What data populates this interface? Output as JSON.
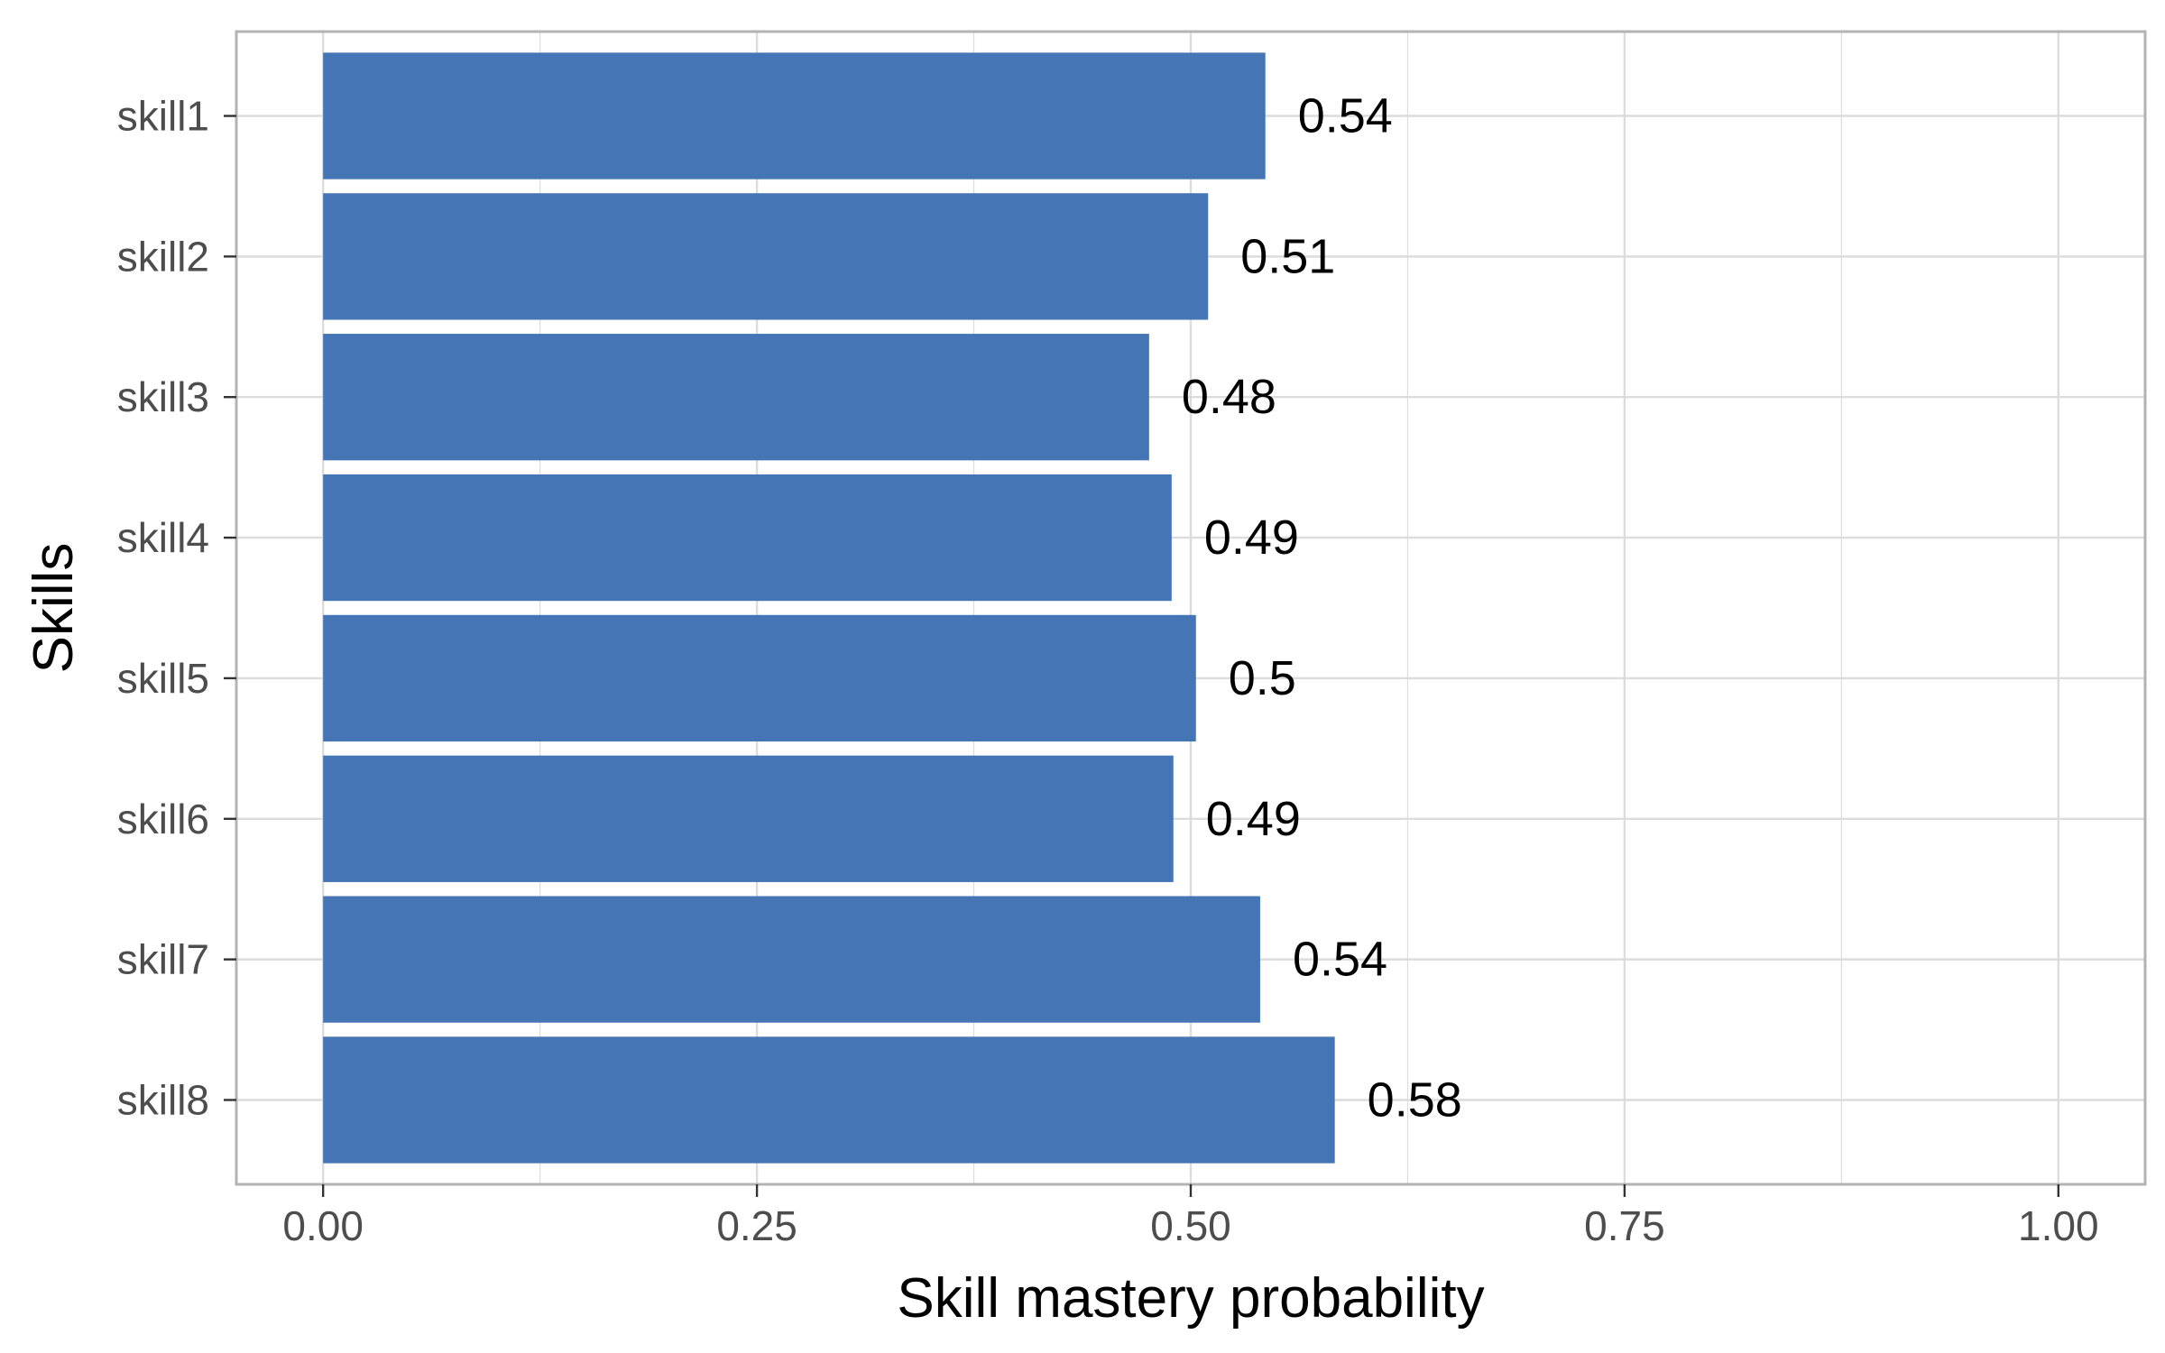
{
  "chart_data": {
    "type": "bar",
    "orientation": "horizontal",
    "categories": [
      "skill1",
      "skill2",
      "skill3",
      "skill4",
      "skill5",
      "skill6",
      "skill7",
      "skill8"
    ],
    "values": [
      0.543,
      0.51,
      0.476,
      0.489,
      0.503,
      0.49,
      0.54,
      0.583
    ],
    "value_labels": [
      "0.54",
      "0.51",
      "0.48",
      "0.49",
      "0.5",
      "0.49",
      "0.54",
      "0.58"
    ],
    "xlabel": "Skill mastery probability",
    "ylabel": "Skills",
    "xlim": [
      -0.05,
      1.05
    ],
    "x_ticks": [
      0,
      0.25,
      0.5,
      0.75,
      1
    ],
    "x_tick_labels": [
      "0.00",
      "0.25",
      "0.50",
      "0.75",
      "1.00"
    ],
    "grid": true,
    "legend": "none",
    "bar_color": "#4575b4",
    "grid_color": "#dcdcdc",
    "panel_border_color": "#b3b3b3"
  }
}
